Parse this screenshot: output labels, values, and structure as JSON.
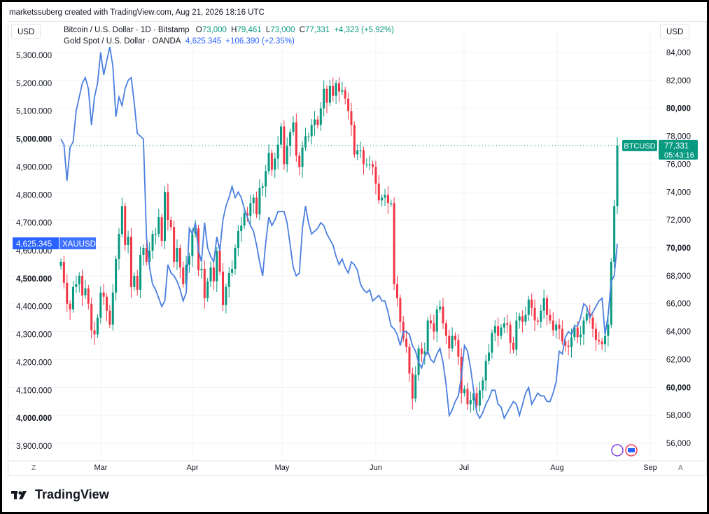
{
  "header": {
    "byline": "marketssuberg created with TradingView.com, Aug 21, 2026 18:16 UTC"
  },
  "left_currency": "USD",
  "right_currency": "USD",
  "legend": {
    "btc_name": "Bitcoin / U.S. Dollar · 1D · Bitstamp",
    "btc_o_label": "O",
    "btc_o": "73,000",
    "btc_h_label": "H",
    "btc_h": "79,461",
    "btc_l_label": "L",
    "btc_l": "73,000",
    "btc_c_label": "C",
    "btc_c": "77,331",
    "btc_change": "+4,323 (+5.92%)",
    "gold_name": "Gold Spot / U.S. Dollar · OANDA",
    "gold_last": "4,625.345",
    "gold_change": "+106.390 (+2.35%)"
  },
  "labels": {
    "btc_ticker": "BTCUSD",
    "btc_price": "77,331",
    "btc_countdown": "05:43:16",
    "gold_price": "4,625.345",
    "gold_ticker": "XAUUSD"
  },
  "corner_left": "Z",
  "corner_right": "A",
  "footer": {
    "brand": "TradingView"
  },
  "colors": {
    "up": "#089981",
    "down": "#f23645",
    "gold_line": "#4a7fe0",
    "btc_label_bg": "#089981",
    "gold_label_bg": "#2962ff"
  },
  "chart_data": {
    "type": "line",
    "x_ticks": [
      "Mar",
      "Apr",
      "May",
      "Jun",
      "Jul",
      "Aug",
      "Sep"
    ],
    "left_axis": {
      "label": "USD",
      "ticks": [
        "5,300.000",
        "5,200.000",
        "5,100.000",
        "5,000.000",
        "4,900.000",
        "4,800.000",
        "4,700.000",
        "4,600.000",
        "4,500.000",
        "4,400.000",
        "4,300.000",
        "4,200.000",
        "4,100.000",
        "4,000.000",
        "3,900.000"
      ],
      "bold": [
        "5,000.000",
        "4,500.000",
        "4,000.000"
      ],
      "ylim": [
        3860,
        5360
      ]
    },
    "right_axis": {
      "label": "USD",
      "ticks": [
        "84,000",
        "82,000",
        "80,000",
        "78,000",
        "76,000",
        "74,000",
        "72,000",
        "70,000",
        "68,000",
        "66,000",
        "64,000",
        "62,000",
        "60,000",
        "58,000",
        "56,000"
      ],
      "bold": [
        "80,000",
        "70,000",
        "60,000"
      ],
      "ylim": [
        55000,
        85000
      ]
    },
    "series": [
      {
        "name": "Gold Spot / U.S. Dollar",
        "axis": "left",
        "values": [
          5000,
          4980,
          4850,
          4970,
          4990,
          5100,
          5150,
          5200,
          5220,
          5180,
          5050,
          5150,
          5200,
          5310,
          5230,
          5280,
          5330,
          5260,
          5080,
          5150,
          5120,
          5180,
          5210,
          5220,
          5130,
          5020,
          5010,
          5000,
          4650,
          4540,
          4480,
          4460,
          4430,
          4400,
          4420,
          4550,
          4520,
          4510,
          4490,
          4460,
          4420,
          4450,
          4680,
          4660,
          4700,
          4600,
          4560,
          4700,
          4610,
          4580,
          4560,
          4650,
          4600,
          4710,
          4760,
          4790,
          4830,
          4790,
          4810,
          4790,
          4750,
          4720,
          4690,
          4670,
          4620,
          4560,
          4510,
          4630,
          4720,
          4690,
          4710,
          4740,
          4740,
          4740,
          4700,
          4620,
          4540,
          4510,
          4520,
          4680,
          4760,
          4700,
          4660,
          4670,
          4680,
          4700,
          4690,
          4660,
          4640,
          4620,
          4580,
          4550,
          4570,
          4540,
          4520,
          4560,
          4550,
          4530,
          4480,
          4460,
          4450,
          4460,
          4420,
          4430,
          4440,
          4420,
          4420,
          4380,
          4330,
          4320,
          4300,
          4260,
          4310,
          4310,
          4300,
          4260,
          4240,
          4200,
          4180,
          4220,
          4240,
          4210,
          4200,
          4230,
          4250,
          4200,
          4120,
          4010,
          4030,
          4060,
          4080,
          4150,
          4260,
          4240,
          4180,
          4100,
          4020,
          4000,
          4020,
          4050,
          4070,
          4100,
          4100,
          4050,
          4040,
          4000,
          4020,
          4040,
          4060,
          4050,
          4010,
          4050,
          4090,
          4110,
          4050,
          4070,
          4090,
          4080,
          4080,
          4060,
          4060,
          4090,
          4130,
          4240,
          4230,
          4290,
          4310,
          4300,
          4330,
          4330,
          4360,
          4410,
          4400,
          4360,
          4380,
          4400,
          4420,
          4430,
          4300,
          4370,
          4490,
          4510,
          4625
        ]
      },
      {
        "name": "Bitcoin / U.S. Dollar",
        "axis": "right",
        "style": "candlestick",
        "values": [
          69000,
          67500,
          66000,
          65600,
          67200,
          67400,
          68000,
          66600,
          67100,
          66000,
          64100,
          63800,
          65000,
          66800,
          66500,
          65500,
          64500,
          66800,
          69200,
          71000,
          73000,
          70200,
          70800,
          67200,
          68000,
          67000,
          69500,
          70000,
          69000,
          69800,
          71000,
          71000,
          72200,
          70500,
          74000,
          72000,
          71500,
          69000,
          70000,
          68600,
          67400,
          68800,
          69400,
          71000,
          71400,
          68400,
          68500,
          66400,
          67600,
          68600,
          67600,
          69800,
          68300,
          65900,
          67200,
          68200,
          68500,
          70000,
          71200,
          71600,
          72500,
          72300,
          73200,
          73600,
          72400,
          74300,
          74400,
          75500,
          76800,
          75600,
          76400,
          77400,
          78700,
          76000,
          77300,
          78300,
          79000,
          76600,
          75800,
          77200,
          78000,
          78000,
          78800,
          79200,
          78800,
          80000,
          81400,
          80400,
          81600,
          80900,
          81800,
          81200,
          81300,
          80700,
          79800,
          78800,
          76700,
          77000,
          77000,
          76000,
          76000,
          76000,
          75800,
          74600,
          73400,
          73600,
          73800,
          73200,
          73200,
          67400,
          66400,
          64700,
          63500,
          62900,
          61000,
          59200,
          60900,
          62800,
          62400,
          62600,
          64800,
          64600,
          64000,
          65600,
          65800,
          64600,
          63700,
          62800,
          63700,
          63400,
          62200,
          59600,
          59900,
          58800,
          59100,
          59600,
          58700,
          59800,
          60500,
          61900,
          62500,
          63900,
          64400,
          63700,
          64300,
          64600,
          64500,
          63200,
          62700,
          64800,
          65100,
          64700,
          65200,
          66300,
          65700,
          64800,
          64700,
          65500,
          66400,
          65200,
          64800,
          64100,
          64500,
          64200,
          63300,
          63000,
          62900,
          63600,
          64300,
          63600,
          63800,
          64800,
          65300,
          65000,
          64200,
          63400,
          63300,
          63100,
          63700,
          64500,
          69000,
          73000,
          77331
        ]
      }
    ]
  }
}
